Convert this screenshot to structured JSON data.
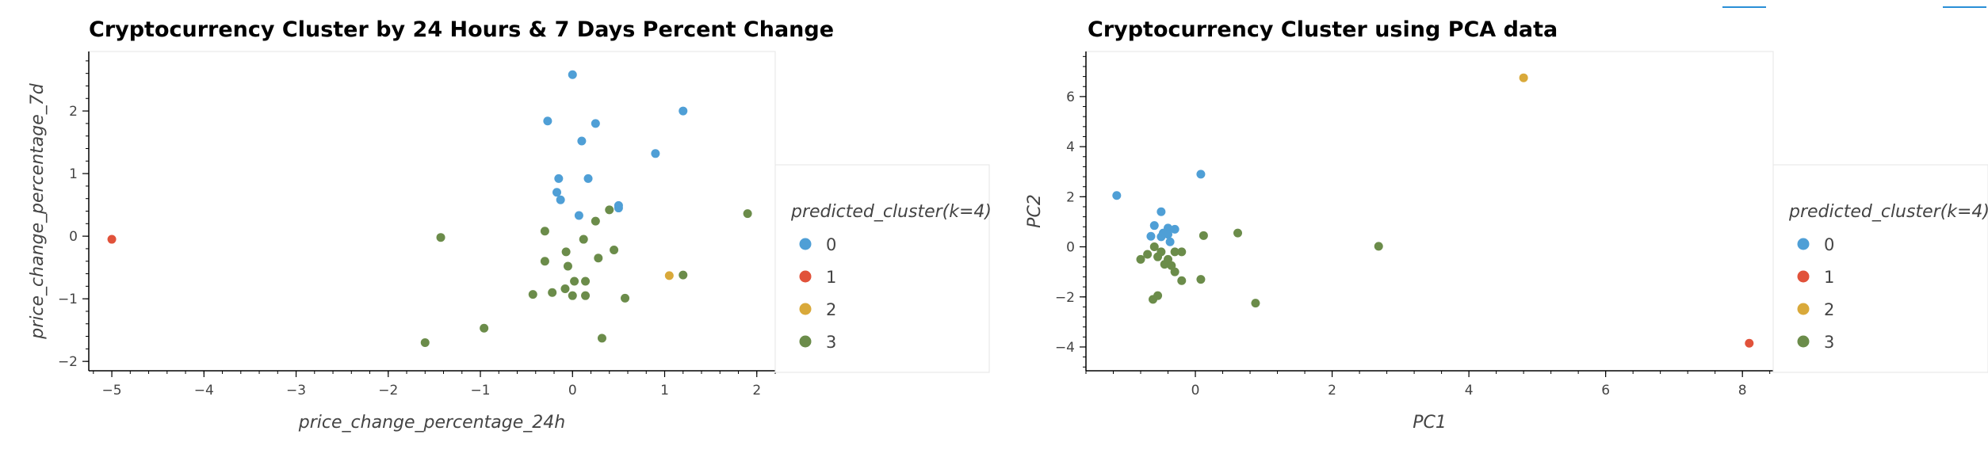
{
  "colors": {
    "cluster_0": "#4f9fd6",
    "cluster_1": "#e1523a",
    "cluster_2": "#d9a93a",
    "cluster_3": "#6b8c4a",
    "toolbar_accent": "#2a8fd6"
  },
  "chart_data": [
    {
      "type": "scatter",
      "title": "Cryptocurrency Cluster by 24 Hours & 7 Days Percent Change",
      "xlabel": "price_change_percentage_24h",
      "ylabel": "price_change_percentage_7d",
      "xlim": [
        -5.25,
        2.2
      ],
      "ylim": [
        -2.15,
        2.95
      ],
      "xticks": [
        -5,
        -4,
        -3,
        -2,
        -1,
        0,
        1,
        2
      ],
      "yticks": [
        -2,
        -1,
        0,
        1,
        2
      ],
      "grid": false,
      "legend": {
        "title": "predicted_cluster(k=4)",
        "placement": "right",
        "entries": [
          "0",
          "1",
          "2",
          "3"
        ]
      },
      "series": [
        {
          "name": "0",
          "color_key": "cluster_0",
          "points": [
            [
              0.0,
              2.58
            ],
            [
              1.2,
              2.0
            ],
            [
              -0.27,
              1.84
            ],
            [
              0.25,
              1.8
            ],
            [
              0.1,
              1.52
            ],
            [
              0.9,
              1.32
            ],
            [
              -0.15,
              0.92
            ],
            [
              0.17,
              0.92
            ],
            [
              -0.17,
              0.7
            ],
            [
              -0.13,
              0.58
            ],
            [
              0.5,
              0.49
            ],
            [
              0.5,
              0.45
            ],
            [
              0.07,
              0.33
            ]
          ]
        },
        {
          "name": "1",
          "color_key": "cluster_1",
          "points": [
            [
              -5.0,
              -0.05
            ]
          ]
        },
        {
          "name": "2",
          "color_key": "cluster_2",
          "points": [
            [
              1.05,
              -0.63
            ]
          ]
        },
        {
          "name": "3",
          "color_key": "cluster_3",
          "points": [
            [
              1.9,
              0.36
            ],
            [
              0.4,
              0.42
            ],
            [
              0.25,
              0.24
            ],
            [
              -0.3,
              0.08
            ],
            [
              0.12,
              -0.05
            ],
            [
              -1.43,
              -0.02
            ],
            [
              -0.07,
              -0.25
            ],
            [
              0.45,
              -0.22
            ],
            [
              -0.3,
              -0.4
            ],
            [
              0.28,
              -0.35
            ],
            [
              -0.05,
              -0.48
            ],
            [
              1.2,
              -0.62
            ],
            [
              0.02,
              -0.72
            ],
            [
              0.14,
              -0.72
            ],
            [
              -0.08,
              -0.84
            ],
            [
              -0.43,
              -0.93
            ],
            [
              -0.22,
              -0.9
            ],
            [
              0.0,
              -0.95
            ],
            [
              0.14,
              -0.95
            ],
            [
              0.57,
              -0.99
            ],
            [
              -0.96,
              -1.47
            ],
            [
              -1.6,
              -1.7
            ],
            [
              0.32,
              -1.63
            ]
          ]
        }
      ]
    },
    {
      "type": "scatter",
      "title": "Cryptocurrency Cluster using PCA data",
      "xlabel": "PC1",
      "ylabel": "PC2",
      "xlim": [
        -1.6,
        8.45
      ],
      "ylim": [
        -4.95,
        7.8
      ],
      "xticks": [
        0,
        2,
        4,
        6,
        8
      ],
      "yticks": [
        -4,
        -2,
        0,
        2,
        4,
        6
      ],
      "grid": false,
      "legend": {
        "title": "predicted_cluster(k=4)",
        "placement": "right",
        "entries": [
          "0",
          "1",
          "2",
          "3"
        ]
      },
      "series": [
        {
          "name": "0",
          "color_key": "cluster_0",
          "points": [
            [
              -1.15,
              2.05
            ],
            [
              0.08,
              2.9
            ],
            [
              -0.5,
              1.4
            ],
            [
              -0.6,
              0.85
            ],
            [
              -0.4,
              0.75
            ],
            [
              -0.3,
              0.7
            ],
            [
              -0.47,
              0.55
            ],
            [
              -0.4,
              0.5
            ],
            [
              -0.65,
              0.42
            ],
            [
              -0.5,
              0.4
            ],
            [
              -0.37,
              0.2
            ]
          ]
        },
        {
          "name": "1",
          "color_key": "cluster_1",
          "points": [
            [
              8.1,
              -3.85
            ]
          ]
        },
        {
          "name": "2",
          "color_key": "cluster_2",
          "points": [
            [
              4.8,
              6.75
            ]
          ]
        },
        {
          "name": "3",
          "color_key": "cluster_3",
          "points": [
            [
              0.62,
              0.55
            ],
            [
              0.12,
              0.45
            ],
            [
              2.68,
              0.02
            ],
            [
              -0.6,
              0.0
            ],
            [
              -0.5,
              -0.2
            ],
            [
              -0.3,
              -0.2
            ],
            [
              -0.2,
              -0.2
            ],
            [
              -0.7,
              -0.3
            ],
            [
              -0.55,
              -0.4
            ],
            [
              -0.4,
              -0.5
            ],
            [
              -0.8,
              -0.5
            ],
            [
              -0.45,
              -0.7
            ],
            [
              -0.35,
              -0.75
            ],
            [
              -0.3,
              -1.0
            ],
            [
              -0.2,
              -1.35
            ],
            [
              0.08,
              -1.3
            ],
            [
              -0.55,
              -1.95
            ],
            [
              -0.62,
              -2.1
            ],
            [
              0.88,
              -2.25
            ]
          ]
        }
      ]
    }
  ]
}
